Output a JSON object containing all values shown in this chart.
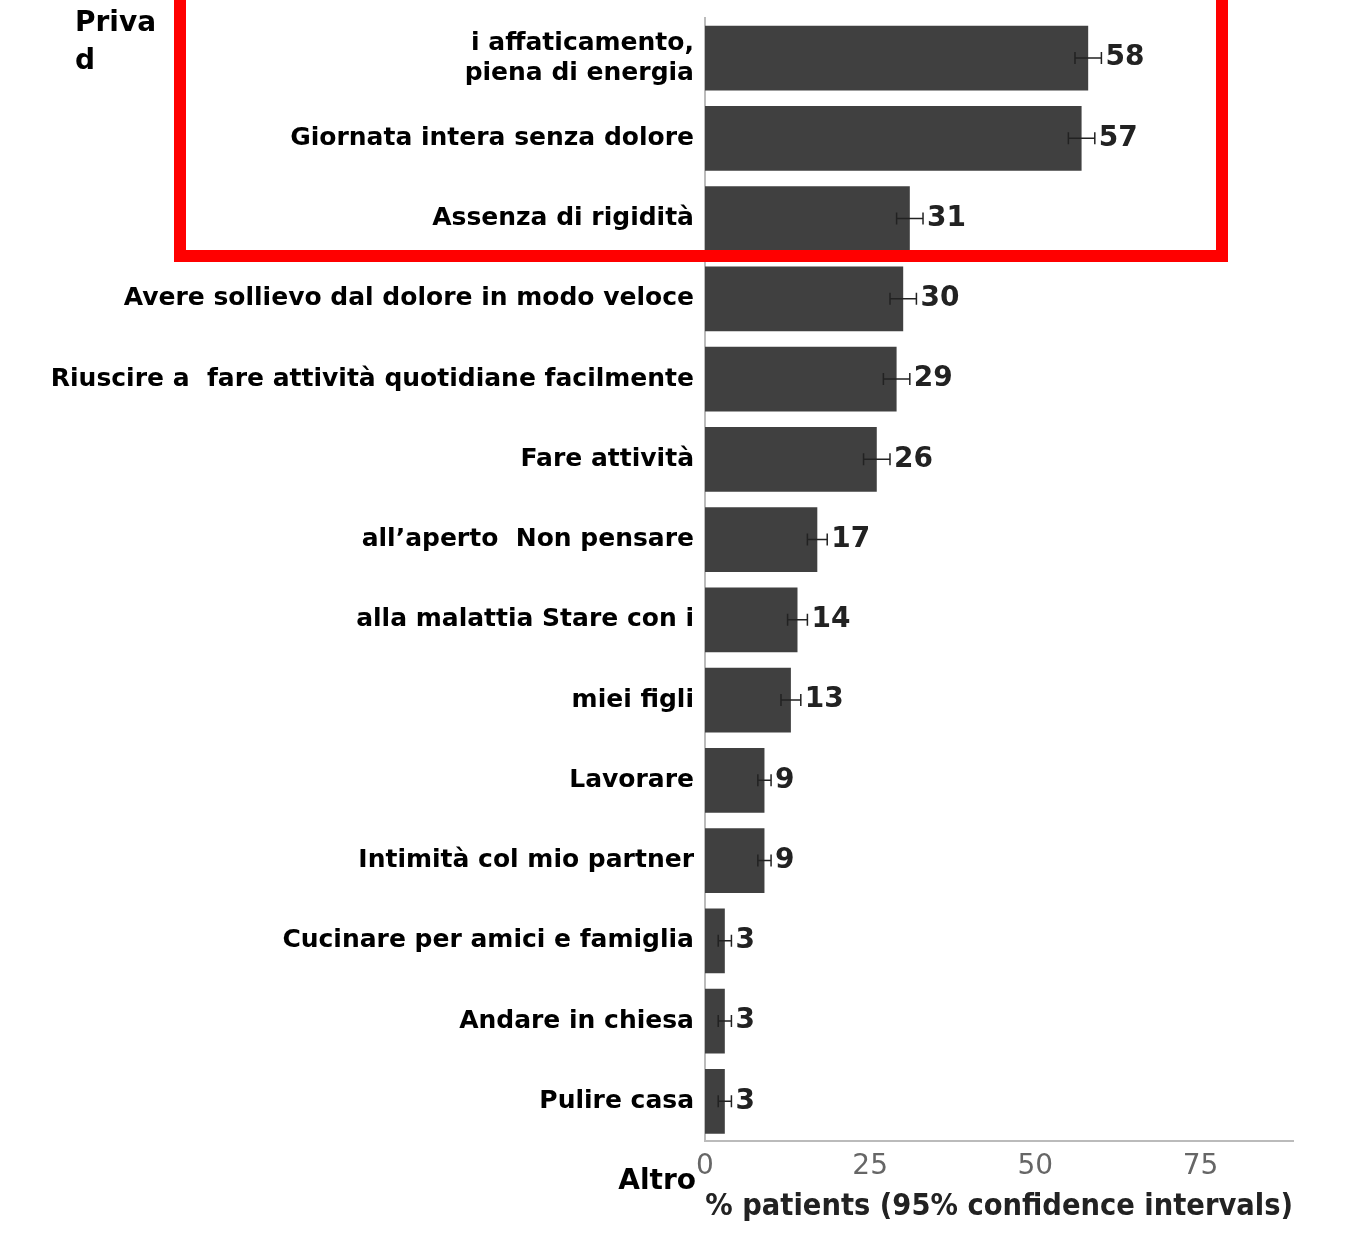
{
  "chart_data": {
    "type": "bar",
    "orientation": "horizontal",
    "xlabel": "% patients (95% confidence intervals)",
    "categories": [
      "i affaticamento, piena di energia",
      "Giornata intera senza dolore",
      "Assenza di rigidità",
      "Avere sollievo dal dolore in modo veloce",
      "Riuscire a  fare attività quotidiane facilmente",
      "Fare attività",
      "all’aperto  Non pensare",
      "alla malattia Stare con i",
      "miei figli",
      "Lavorare",
      "Intimità col mio partner",
      "Cucinare per amici e famiglia",
      "Andare in chiesa",
      "Pulire casa"
    ],
    "values": [
      58,
      57,
      31,
      30,
      29,
      26,
      17,
      14,
      13,
      9,
      9,
      3,
      3,
      3
    ],
    "errors": [
      2,
      2,
      2,
      2,
      2,
      2,
      1.5,
      1.5,
      1.5,
      1,
      1,
      1,
      1,
      1
    ],
    "color": "#404040",
    "data_labels": true,
    "xlim": [
      0,
      89
    ],
    "xticks": [
      0,
      25,
      50,
      75
    ],
    "grid": false,
    "legend": false,
    "annotations": [
      "Priva\nd",
      "Altro"
    ]
  }
}
